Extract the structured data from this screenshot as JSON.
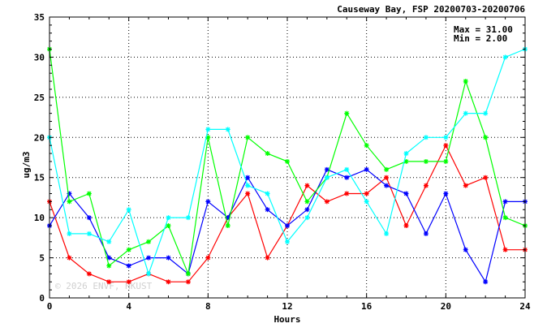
{
  "chart_data": {
    "type": "line",
    "title": "Causeway Bay, FSP 20200703-20200706",
    "xlabel": "Hours",
    "ylabel": "ug/m3",
    "xlim": [
      0,
      24
    ],
    "ylim": [
      0,
      35
    ],
    "xticks": [
      0,
      4,
      8,
      12,
      16,
      20,
      24
    ],
    "yticks": [
      0,
      5,
      10,
      15,
      20,
      25,
      30,
      35
    ],
    "grid": true,
    "stats": {
      "max_label": "Max = 31.00",
      "min_label": "Min =  2.00"
    },
    "watermark": "© 2026  ENVF, HKUST",
    "x": [
      0,
      1,
      2,
      3,
      4,
      5,
      6,
      7,
      8,
      9,
      10,
      11,
      12,
      13,
      14,
      15,
      16,
      17,
      18,
      19,
      20,
      21,
      22,
      23,
      24
    ],
    "series": [
      {
        "color": "#ff0000",
        "values": [
          12,
          5,
          3,
          2,
          2,
          3,
          2,
          2,
          5,
          10,
          13,
          5,
          9,
          14,
          12,
          13,
          13,
          15,
          9,
          14,
          19,
          14,
          15,
          6,
          6
        ]
      },
      {
        "color": "#0000ff",
        "values": [
          9,
          13,
          10,
          5,
          4,
          5,
          5,
          3,
          12,
          10,
          15,
          11,
          9,
          11,
          16,
          15,
          16,
          14,
          13,
          8,
          13,
          6,
          2,
          12,
          12
        ]
      },
      {
        "color": "#00ff00",
        "values": [
          31,
          12,
          13,
          4,
          6,
          7,
          9,
          3,
          20,
          9,
          20,
          18,
          17,
          12,
          15,
          23,
          19,
          16,
          17,
          17,
          17,
          27,
          20,
          10,
          9
        ]
      },
      {
        "color": "#00ffff",
        "values": [
          20,
          8,
          8,
          7,
          11,
          3,
          10,
          10,
          21,
          21,
          14,
          13,
          7,
          10,
          15,
          16,
          12,
          8,
          18,
          20,
          20,
          23,
          23,
          30,
          31
        ]
      }
    ]
  }
}
